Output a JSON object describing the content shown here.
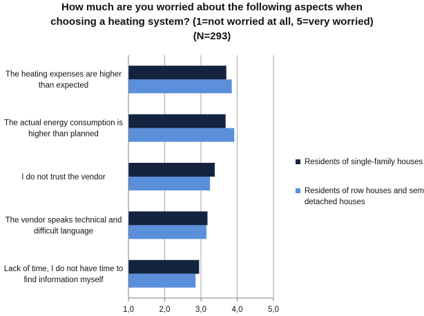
{
  "chart_data": {
    "type": "bar",
    "orientation": "horizontal",
    "title_lines": [
      "How much are you worried about the following aspects when",
      "choosing a heating system? (1=not worried at all, 5=very worried)",
      "(N=293)"
    ],
    "categories": [
      [
        "The heating expenses are higher",
        "than expected"
      ],
      [
        "The actual energy consumption is",
        "higher than planned"
      ],
      [
        "I do not trust the vendor"
      ],
      [
        "The vendor speaks technical and",
        "difficult language"
      ],
      [
        "Lack of time, I do not have time to",
        "find information myself"
      ]
    ],
    "series": [
      {
        "name": "Residents of single-family houses",
        "color": "#14233f",
        "values": [
          3.7,
          3.68,
          3.38,
          3.18,
          2.95
        ]
      },
      {
        "name": "Residents of row houses and semi-detached houses",
        "legend_lines": [
          "Residents of row houses and semi-",
          "detached houses"
        ],
        "color": "#5b8fd9",
        "values": [
          3.85,
          3.92,
          3.25,
          3.15,
          2.85
        ]
      }
    ],
    "xlim": [
      1.0,
      5.0
    ],
    "xticks": [
      1.0,
      2.0,
      3.0,
      4.0,
      5.0
    ],
    "xtick_labels": [
      "1,0",
      "2,0",
      "3,0",
      "4,0",
      "5,0"
    ],
    "grid": "vertical",
    "legend_position": "right"
  }
}
